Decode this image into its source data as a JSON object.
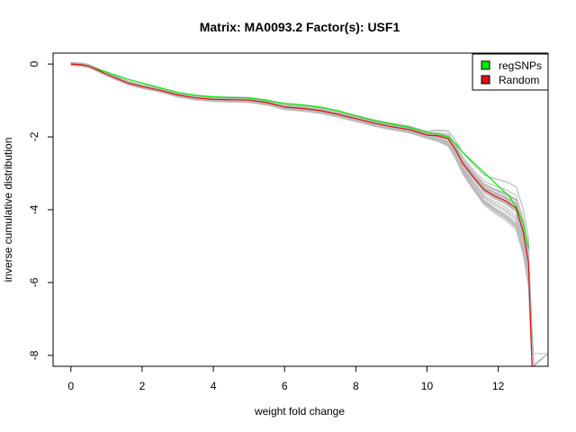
{
  "chart_data": {
    "type": "line",
    "title": "Matrix: MA0093.2 Factor(s): USF1",
    "xlabel": "weight fold change",
    "ylabel": "inverse cumulative distribution",
    "xlim": [
      -0.5,
      13.4
    ],
    "ylim": [
      -8.3,
      0.3
    ],
    "x_ticks": [
      0,
      2,
      4,
      6,
      8,
      10,
      12
    ],
    "x_tick_labels": [
      "0",
      "2",
      "4",
      "6",
      "8",
      "10",
      "12"
    ],
    "y_ticks": [
      0,
      -2,
      -4,
      -6,
      -8
    ],
    "y_tick_labels": [
      "0",
      "-2",
      "-4",
      "-6",
      "-8"
    ],
    "legend": {
      "position": "top-right",
      "entries": [
        {
          "label": "regSNPs",
          "color": "#00ee00"
        },
        {
          "label": "Random",
          "color": "#dd1111"
        }
      ]
    },
    "series": [
      {
        "name": "regSNPs",
        "color": "#00ee00",
        "x": [
          0,
          0.3,
          0.5,
          0.7,
          1.0,
          1.3,
          1.6,
          2.0,
          2.5,
          3.0,
          3.5,
          4.0,
          4.5,
          5.0,
          5.5,
          6.0,
          6.5,
          7.0,
          7.5,
          8.0,
          8.5,
          9.0,
          9.5,
          10.0,
          10.3,
          10.6,
          10.8,
          11.0,
          11.3,
          11.6,
          12.0,
          12.3,
          12.5,
          12.7,
          12.85
        ],
        "y": [
          0,
          -0.02,
          -0.06,
          -0.13,
          -0.22,
          -0.32,
          -0.42,
          -0.52,
          -0.65,
          -0.78,
          -0.86,
          -0.9,
          -0.92,
          -0.93,
          -1.0,
          -1.08,
          -1.12,
          -1.18,
          -1.28,
          -1.42,
          -1.55,
          -1.65,
          -1.74,
          -1.88,
          -1.93,
          -2.0,
          -2.18,
          -2.42,
          -2.7,
          -2.98,
          -3.35,
          -3.62,
          -3.92,
          -4.35,
          -5.05
        ]
      },
      {
        "name": "Random",
        "color": "#dd1111",
        "x": [
          0,
          0.3,
          0.5,
          0.7,
          1.0,
          1.3,
          1.6,
          2.0,
          2.5,
          3.0,
          3.5,
          4.0,
          4.5,
          5.0,
          5.5,
          6.0,
          6.5,
          7.0,
          7.5,
          8.0,
          8.5,
          9.0,
          9.5,
          10.0,
          10.3,
          10.6,
          10.8,
          11.0,
          11.3,
          11.6,
          11.9,
          12.2,
          12.5,
          12.7,
          12.85,
          12.95
        ],
        "y": [
          0,
          -0.02,
          -0.06,
          -0.14,
          -0.28,
          -0.4,
          -0.52,
          -0.62,
          -0.72,
          -0.85,
          -0.93,
          -0.97,
          -0.98,
          -0.99,
          -1.06,
          -1.18,
          -1.22,
          -1.28,
          -1.38,
          -1.5,
          -1.62,
          -1.72,
          -1.8,
          -1.95,
          -1.97,
          -2.05,
          -2.35,
          -2.72,
          -3.1,
          -3.45,
          -3.62,
          -3.75,
          -3.95,
          -4.6,
          -5.45,
          -8.3
        ]
      }
    ],
    "random_background": {
      "color": "#bbbbbb",
      "description_count": 30
    }
  }
}
